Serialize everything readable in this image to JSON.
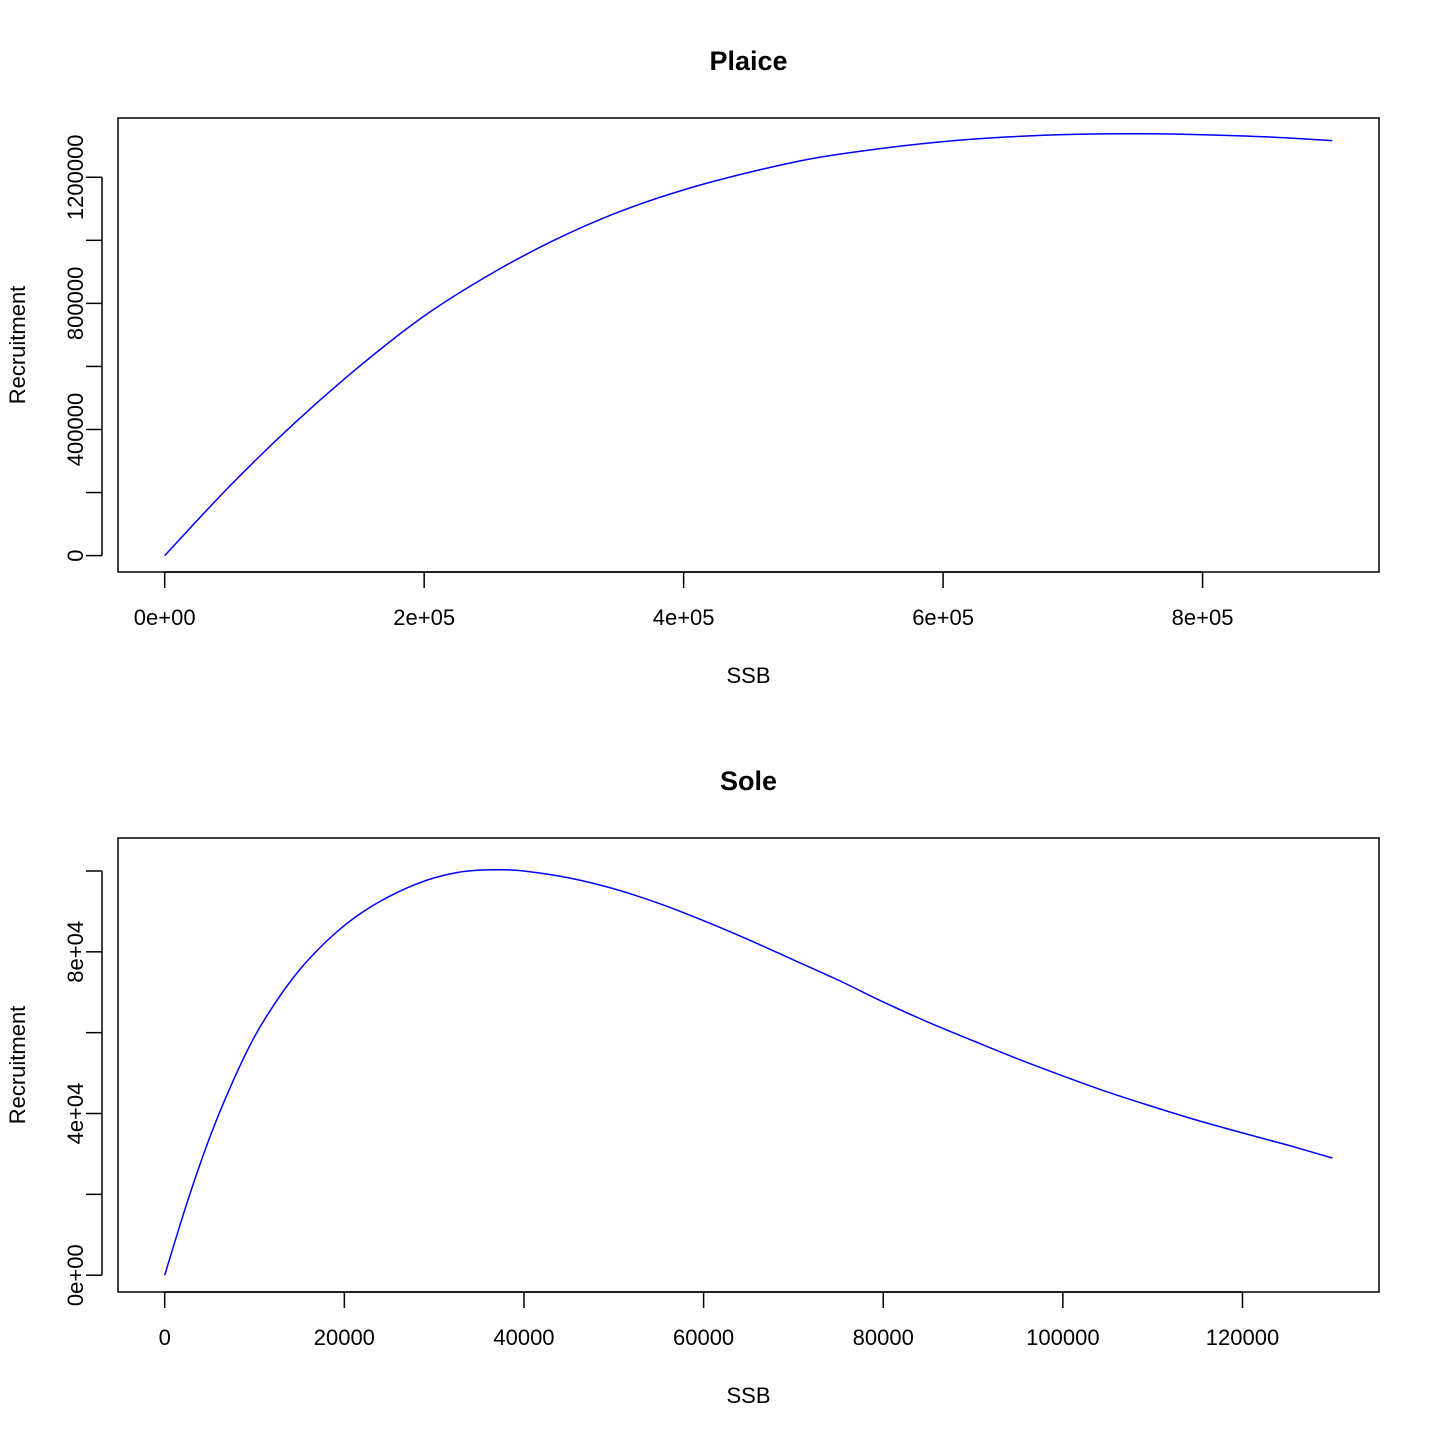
{
  "chart_data": [
    {
      "type": "line",
      "title": "Plaice",
      "xlabel": "SSB",
      "ylabel": "Recruitment",
      "xlim": [
        -36000,
        936000
      ],
      "ylim": [
        -52000,
        1388000
      ],
      "x_ticks": [
        0,
        200000,
        400000,
        600000,
        800000
      ],
      "x_tick_labels": [
        "0e+00",
        "2e+05",
        "4e+05",
        "6e+05",
        "8e+05"
      ],
      "y_ticks": [
        0,
        200000,
        400000,
        600000,
        800000,
        1000000,
        1200000
      ],
      "y_tick_labels": [
        "0",
        "",
        "400000",
        "",
        "800000",
        "",
        "1200000"
      ],
      "grid": false,
      "color": "#0000ff",
      "series": [
        {
          "x": [
            0,
            50000,
            100000,
            150000,
            200000,
            250000,
            300000,
            350000,
            400000,
            450000,
            500000,
            550000,
            600000,
            650000,
            700000,
            750000,
            800000,
            850000,
            900000
          ],
          "y": [
            0,
            220000,
            420000,
            600000,
            760000,
            890000,
            1000000,
            1090000,
            1160000,
            1215000,
            1260000,
            1290000,
            1313000,
            1328000,
            1336000,
            1338000,
            1335000,
            1328000,
            1316000
          ]
        }
      ]
    },
    {
      "type": "line",
      "title": "Sole",
      "xlabel": "SSB",
      "ylabel": "Recruitment",
      "xlim": [
        -5200,
        135200
      ],
      "ylim": [
        -4160,
        108160
      ],
      "x_ticks": [
        0,
        20000,
        40000,
        60000,
        80000,
        100000,
        120000
      ],
      "x_tick_labels": [
        "0",
        "20000",
        "40000",
        "60000",
        "80000",
        "100000",
        "120000"
      ],
      "y_ticks": [
        0,
        20000,
        40000,
        60000,
        80000,
        100000
      ],
      "y_tick_labels": [
        "0e+00",
        "",
        "4e+04",
        "",
        "8e+04",
        ""
      ],
      "grid": false,
      "color": "#0000ff",
      "series": [
        {
          "x": [
            0,
            2500,
            5000,
            7500,
            10000,
            12500,
            15000,
            17500,
            20000,
            22500,
            25000,
            27500,
            30000,
            32500,
            35000,
            37500,
            40000,
            45000,
            50000,
            55000,
            60000,
            65000,
            70000,
            75000,
            80000,
            85000,
            90000,
            95000,
            100000,
            105000,
            110000,
            115000,
            120000,
            125000,
            130000
          ],
          "y": [
            0,
            18000,
            34000,
            47500,
            59000,
            68000,
            75500,
            81500,
            86500,
            90500,
            93700,
            96300,
            98300,
            99600,
            100200,
            100300,
            100000,
            98300,
            95600,
            92000,
            87700,
            83000,
            78000,
            73000,
            67600,
            62600,
            58000,
            53500,
            49300,
            45300,
            41700,
            38300,
            35200,
            32200,
            29000
          ]
        }
      ]
    }
  ]
}
